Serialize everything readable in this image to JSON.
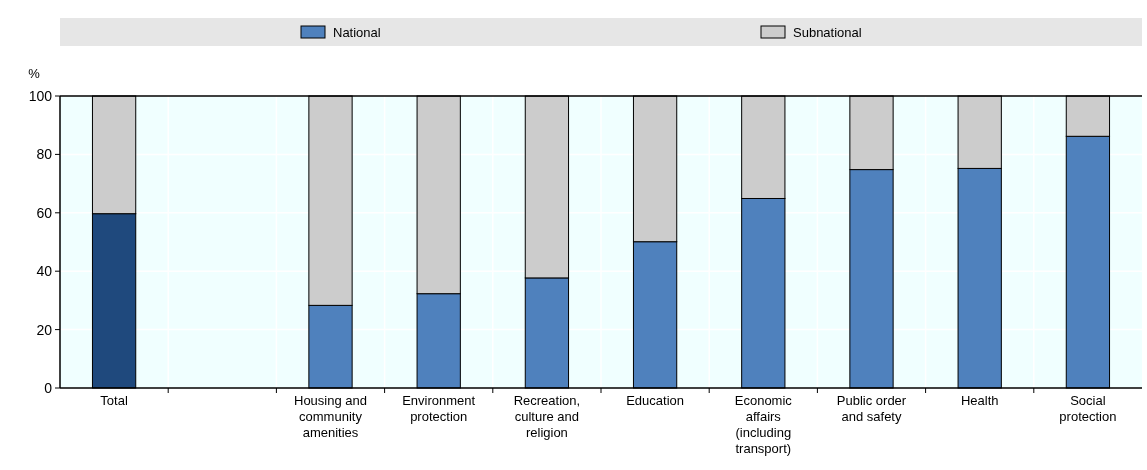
{
  "chart_data": {
    "type": "bar",
    "stacked": true,
    "ylabel": "%",
    "categories": [
      "Total",
      null,
      "Housing and community amenities",
      "Environment protection",
      "Recreation, culture and religion",
      "Education",
      "Economic affairs (including transport)",
      "Public order and safety",
      "Health",
      "Social protection"
    ],
    "series": [
      {
        "name": "National",
        "color": "#4f81bd",
        "colors": [
          "#1f497d",
          null,
          "#4f81bd",
          "#4f81bd",
          "#4f81bd",
          "#4f81bd",
          "#4f81bd",
          "#4f81bd",
          "#4f81bd",
          "#4f81bd"
        ],
        "values": [
          59.7,
          null,
          28.3,
          32.3,
          37.7,
          50.1,
          64.9,
          74.8,
          75.2,
          86.2
        ]
      },
      {
        "name": "Subnational",
        "color": "#cccccc",
        "values": [
          40.3,
          null,
          71.7,
          67.7,
          62.3,
          49.9,
          35.1,
          25.2,
          24.8,
          13.8
        ]
      }
    ],
    "ylim": [
      0,
      100
    ],
    "yticks": [
      0,
      20,
      40,
      60,
      80,
      100
    ],
    "grid": true,
    "legend": "top"
  }
}
